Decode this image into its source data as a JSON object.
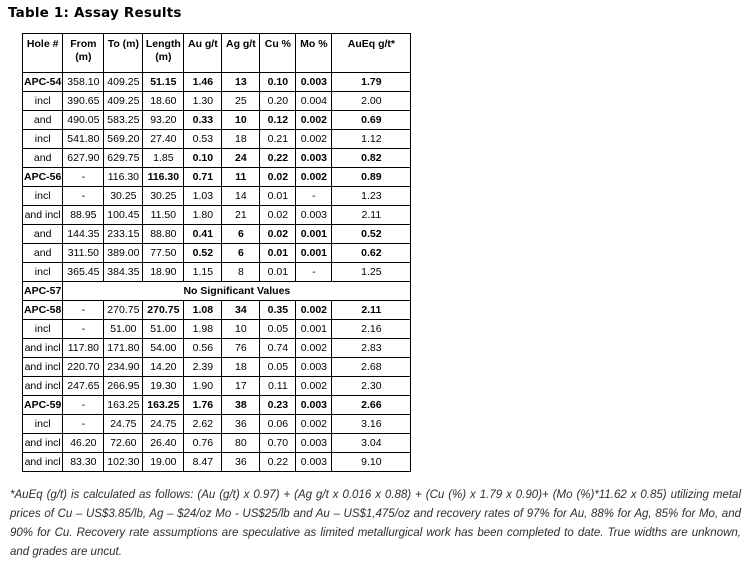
{
  "title": "Table 1: Assay Results",
  "table": {
    "columns": [
      {
        "lines": [
          "Hole #"
        ]
      },
      {
        "lines": [
          "From",
          "(m)"
        ]
      },
      {
        "lines": [
          "To (m)"
        ]
      },
      {
        "lines": [
          "Length",
          "(m)"
        ]
      },
      {
        "lines": [
          "Au g/t"
        ]
      },
      {
        "lines": [
          "Ag g/t"
        ]
      },
      {
        "lines": [
          "Cu %"
        ]
      },
      {
        "lines": [
          "Mo %"
        ]
      },
      {
        "lines": [
          "AuEq g/t*"
        ]
      }
    ],
    "rows": [
      {
        "type": "data",
        "cells": [
          "APC-54",
          "358.10",
          "409.25",
          "51.15",
          "1.46",
          "13",
          "0.10",
          "0.003",
          "1.79"
        ],
        "bold": [
          0,
          3,
          4,
          5,
          6,
          7,
          8
        ]
      },
      {
        "type": "data",
        "cells": [
          "incl",
          "390.65",
          "409.25",
          "18.60",
          "1.30",
          "25",
          "0.20",
          "0.004",
          "2.00"
        ],
        "bold": []
      },
      {
        "type": "data",
        "cells": [
          "and",
          "490.05",
          "583.25",
          "93.20",
          "0.33",
          "10",
          "0.12",
          "0.002",
          "0.69"
        ],
        "bold": [
          4,
          5,
          6,
          7,
          8
        ]
      },
      {
        "type": "data",
        "cells": [
          "incl",
          "541.80",
          "569.20",
          "27.40",
          "0.53",
          "18",
          "0.21",
          "0.002",
          "1.12"
        ],
        "bold": []
      },
      {
        "type": "data",
        "cells": [
          "and",
          "627.90",
          "629.75",
          "1.85",
          "0.10",
          "24",
          "0.22",
          "0.003",
          "0.82"
        ],
        "bold": [
          4,
          5,
          6,
          7,
          8
        ]
      },
      {
        "type": "data",
        "cells": [
          "APC-56",
          "-",
          "116.30",
          "116.30",
          "0.71",
          "11",
          "0.02",
          "0.002",
          "0.89"
        ],
        "bold": [
          0,
          3,
          4,
          5,
          6,
          7,
          8
        ]
      },
      {
        "type": "data",
        "cells": [
          "incl",
          "-",
          "30.25",
          "30.25",
          "1.03",
          "14",
          "0.01",
          "-",
          "1.23"
        ],
        "bold": []
      },
      {
        "type": "data",
        "cells": [
          "and incl",
          "88.95",
          "100.45",
          "11.50",
          "1.80",
          "21",
          "0.02",
          "0.003",
          "2.11"
        ],
        "bold": []
      },
      {
        "type": "data",
        "cells": [
          "and",
          "144.35",
          "233.15",
          "88.80",
          "0.41",
          "6",
          "0.02",
          "0.001",
          "0.52"
        ],
        "bold": [
          4,
          5,
          6,
          7,
          8
        ]
      },
      {
        "type": "data",
        "cells": [
          "and",
          "311.50",
          "389.00",
          "77.50",
          "0.52",
          "6",
          "0.01",
          "0.001",
          "0.62"
        ],
        "bold": [
          4,
          5,
          6,
          7,
          8
        ]
      },
      {
        "type": "data",
        "cells": [
          "incl",
          "365.45",
          "384.35",
          "18.90",
          "1.15",
          "8",
          "0.01",
          "-",
          "1.25"
        ],
        "bold": []
      },
      {
        "type": "span",
        "cells": [
          "APC-57",
          "No Significant Values"
        ],
        "bold": [
          0,
          1
        ]
      },
      {
        "type": "data",
        "cells": [
          "APC-58",
          "-",
          "270.75",
          "270.75",
          "1.08",
          "34",
          "0.35",
          "0.002",
          "2.11"
        ],
        "bold": [
          0,
          3,
          4,
          5,
          6,
          7,
          8
        ]
      },
      {
        "type": "data",
        "cells": [
          "incl",
          "-",
          "51.00",
          "51.00",
          "1.98",
          "10",
          "0.05",
          "0.001",
          "2.16"
        ],
        "bold": []
      },
      {
        "type": "data",
        "cells": [
          "and incl",
          "117.80",
          "171.80",
          "54.00",
          "0.56",
          "76",
          "0.74",
          "0.002",
          "2.83"
        ],
        "bold": []
      },
      {
        "type": "data",
        "cells": [
          "and incl",
          "220.70",
          "234.90",
          "14.20",
          "2.39",
          "18",
          "0.05",
          "0.003",
          "2.68"
        ],
        "bold": []
      },
      {
        "type": "data",
        "cells": [
          "and incl",
          "247.65",
          "266.95",
          "19.30",
          "1.90",
          "17",
          "0.11",
          "0.002",
          "2.30"
        ],
        "bold": []
      },
      {
        "type": "data",
        "cells": [
          "APC-59",
          "-",
          "163.25",
          "163.25",
          "1.76",
          "38",
          "0.23",
          "0.003",
          "2.66"
        ],
        "bold": [
          0,
          3,
          4,
          5,
          6,
          7,
          8
        ]
      },
      {
        "type": "data",
        "cells": [
          "incl",
          "-",
          "24.75",
          "24.75",
          "2.62",
          "36",
          "0.06",
          "0.002",
          "3.16"
        ],
        "bold": []
      },
      {
        "type": "data",
        "cells": [
          "and incl",
          "46.20",
          "72.60",
          "26.40",
          "0.76",
          "80",
          "0.70",
          "0.003",
          "3.04"
        ],
        "bold": []
      },
      {
        "type": "data",
        "cells": [
          "and incl",
          "83.30",
          "102.30",
          "19.00",
          "8.47",
          "36",
          "0.22",
          "0.003",
          "9.10"
        ],
        "bold": []
      }
    ]
  },
  "footnote": "*AuEq (g/t) is calculated as follows: (Au (g/t) x 0.97) + (Ag g/t x 0.016 x 0.88) + (Cu (%) x 1.79 x 0.90)+ (Mo (%)*11.62 x 0.85) utilizing metal prices of Cu – US$3.85/lb, Ag – $24/oz Mo - US$25/lb and Au – US$1,475/oz and recovery rates of 97% for Au, 88% for Ag, 85% for Mo, and 90% for Cu. Recovery rate assumptions are speculative as limited metallurgical work has been completed to date. True widths are unknown, and grades are uncut."
}
